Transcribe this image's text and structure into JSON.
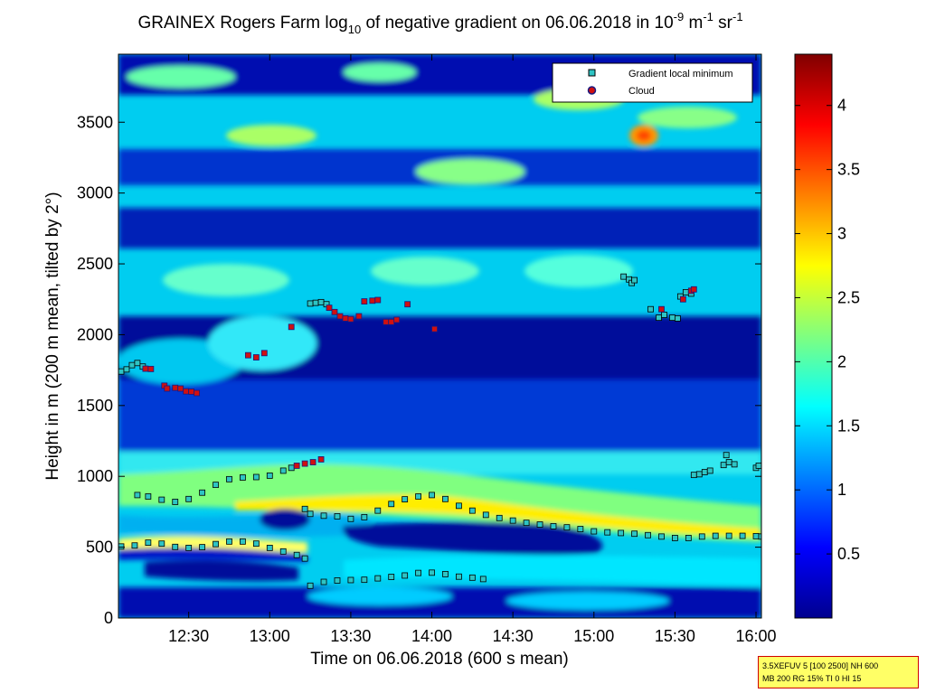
{
  "title": {
    "prefix": "GRAINEX Rogers Farm log",
    "sub": "10",
    "middle": " of negative gradient on 06.06.2018 in 10",
    "sup1": "-9",
    "unit1": " m",
    "sup2": "-1",
    "unit2": " sr",
    "sup3": "-1"
  },
  "param_box": {
    "line1": "3.5XEFUV 5 [100 2500] NH 600",
    "line2": "MB 200 RG 15% TI 0 HI 15"
  },
  "colors": {
    "gradient_marker": "#2ec4c4",
    "cloud_marker": "#d01010",
    "cloud_marker_edge": "#1a1a80"
  },
  "chart_data": {
    "type": "heatmap",
    "title": "GRAINEX Rogers Farm log10 of negative gradient on 06.06.2018 in 10^-9 m^-1 sr^-1",
    "xlabel": "Time on 06.06.2018 (600 s mean)",
    "ylabel": "Height in m (200 m mean, tilted by 2°)",
    "xlim": [
      "12:04",
      "16:02"
    ],
    "ylim": [
      0,
      3980
    ],
    "xticks": [
      "12:30",
      "13:00",
      "13:30",
      "14:00",
      "14:30",
      "15:00",
      "15:30",
      "16:00"
    ],
    "yticks": [
      0,
      500,
      1000,
      1500,
      2000,
      2500,
      3000,
      3500
    ],
    "colorbar": {
      "range": [
        0,
        4.4
      ],
      "ticks": [
        0.5,
        1,
        1.5,
        2,
        2.5,
        3,
        3.5,
        4
      ],
      "colormap": "jet"
    },
    "legend": {
      "placement": "top-right",
      "entries": [
        "Gradient local minimum",
        "Cloud"
      ]
    },
    "series": [
      {
        "name": "Gradient local minimum",
        "points": [
          [
            "12:05",
            505
          ],
          [
            "12:10",
            512
          ],
          [
            "12:15",
            532
          ],
          [
            "12:20",
            525
          ],
          [
            "12:25",
            502
          ],
          [
            "12:30",
            495
          ],
          [
            "12:35",
            500
          ],
          [
            "12:40",
            522
          ],
          [
            "12:45",
            540
          ],
          [
            "12:50",
            540
          ],
          [
            "12:55",
            525
          ],
          [
            "13:00",
            495
          ],
          [
            "13:05",
            470
          ],
          [
            "13:10",
            445
          ],
          [
            "13:13",
            420
          ],
          [
            "13:15",
            228
          ],
          [
            "13:20",
            255
          ],
          [
            "13:25",
            265
          ],
          [
            "13:30",
            268
          ],
          [
            "13:35",
            270
          ],
          [
            "13:40",
            280
          ],
          [
            "13:45",
            290
          ],
          [
            "13:50",
            300
          ],
          [
            "13:55",
            318
          ],
          [
            "14:00",
            320
          ],
          [
            "14:05",
            310
          ],
          [
            "14:10",
            292
          ],
          [
            "14:15",
            285
          ],
          [
            "14:19",
            275
          ],
          [
            "12:11",
            868
          ],
          [
            "12:15",
            858
          ],
          [
            "12:20",
            835
          ],
          [
            "12:25",
            820
          ],
          [
            "12:30",
            840
          ],
          [
            "12:35",
            885
          ],
          [
            "12:40",
            940
          ],
          [
            "12:45",
            980
          ],
          [
            "12:50",
            992
          ],
          [
            "12:55",
            995
          ],
          [
            "13:00",
            1005
          ],
          [
            "13:05",
            1040
          ],
          [
            "13:08",
            1060
          ],
          [
            "13:13",
            770
          ],
          [
            "13:15",
            735
          ],
          [
            "13:20",
            722
          ],
          [
            "13:25",
            718
          ],
          [
            "13:30",
            700
          ],
          [
            "13:35",
            712
          ],
          [
            "13:40",
            758
          ],
          [
            "13:45",
            805
          ],
          [
            "13:50",
            838
          ],
          [
            "13:55",
            858
          ],
          [
            "14:00",
            868
          ],
          [
            "14:05",
            840
          ],
          [
            "14:10",
            792
          ],
          [
            "14:15",
            758
          ],
          [
            "14:20",
            728
          ],
          [
            "14:25",
            706
          ],
          [
            "14:30",
            688
          ],
          [
            "14:35",
            672
          ],
          [
            "14:40",
            660
          ],
          [
            "14:45",
            648
          ],
          [
            "14:50",
            640
          ],
          [
            "14:55",
            628
          ],
          [
            "15:00",
            612
          ],
          [
            "15:05",
            605
          ],
          [
            "15:10",
            600
          ],
          [
            "15:15",
            595
          ],
          [
            "15:20",
            585
          ],
          [
            "15:25",
            575
          ],
          [
            "15:30",
            565
          ],
          [
            "15:35",
            565
          ],
          [
            "15:40",
            575
          ],
          [
            "15:45",
            580
          ],
          [
            "15:50",
            580
          ],
          [
            "15:55",
            580
          ],
          [
            "16:00",
            578
          ],
          [
            "16:02",
            575
          ],
          [
            "15:37",
            1010
          ],
          [
            "15:39",
            1015
          ],
          [
            "15:41",
            1030
          ],
          [
            "15:43",
            1040
          ],
          [
            "15:48",
            1080
          ],
          [
            "15:50",
            1100
          ],
          [
            "15:52",
            1085
          ],
          [
            "15:49",
            1150
          ],
          [
            "16:00",
            1060
          ],
          [
            "16:01",
            1075
          ],
          [
            "12:05",
            1740
          ],
          [
            "12:07",
            1755
          ],
          [
            "12:09",
            1785
          ],
          [
            "12:11",
            1800
          ],
          [
            "12:13",
            1775
          ],
          [
            "13:15",
            2220
          ],
          [
            "13:17",
            2225
          ],
          [
            "13:19",
            2230
          ],
          [
            "13:21",
            2215
          ],
          [
            "15:11",
            2410
          ],
          [
            "15:13",
            2390
          ],
          [
            "15:14",
            2365
          ],
          [
            "15:15",
            2385
          ],
          [
            "15:21",
            2180
          ],
          [
            "15:24",
            2120
          ],
          [
            "15:26",
            2140
          ],
          [
            "15:29",
            2120
          ],
          [
            "15:31",
            2115
          ],
          [
            "15:32",
            2270
          ],
          [
            "15:34",
            2300
          ],
          [
            "15:36",
            2290
          ]
        ]
      },
      {
        "name": "Cloud",
        "points": [
          [
            "12:14",
            1760
          ],
          [
            "12:16",
            1758
          ],
          [
            "12:21",
            1640
          ],
          [
            "12:22",
            1620
          ],
          [
            "12:25",
            1625
          ],
          [
            "12:27",
            1620
          ],
          [
            "12:29",
            1600
          ],
          [
            "12:31",
            1598
          ],
          [
            "12:33",
            1588
          ],
          [
            "12:52",
            1855
          ],
          [
            "12:55",
            1840
          ],
          [
            "12:58",
            1870
          ],
          [
            "13:08",
            2055
          ],
          [
            "13:10",
            1075
          ],
          [
            "13:13",
            1090
          ],
          [
            "13:16",
            1100
          ],
          [
            "13:19",
            1120
          ],
          [
            "13:22",
            2190
          ],
          [
            "13:24",
            2160
          ],
          [
            "13:26",
            2130
          ],
          [
            "13:28",
            2115
          ],
          [
            "13:30",
            2110
          ],
          [
            "13:33",
            2130
          ],
          [
            "13:35",
            2235
          ],
          [
            "13:38",
            2240
          ],
          [
            "13:40",
            2245
          ],
          [
            "13:43",
            2090
          ],
          [
            "13:45",
            2090
          ],
          [
            "13:47",
            2105
          ],
          [
            "13:51",
            2215
          ],
          [
            "14:01",
            2040
          ],
          [
            "15:25",
            2180
          ],
          [
            "15:33",
            2250
          ],
          [
            "15:36",
            2310
          ],
          [
            "15:37",
            2320
          ]
        ]
      }
    ]
  }
}
